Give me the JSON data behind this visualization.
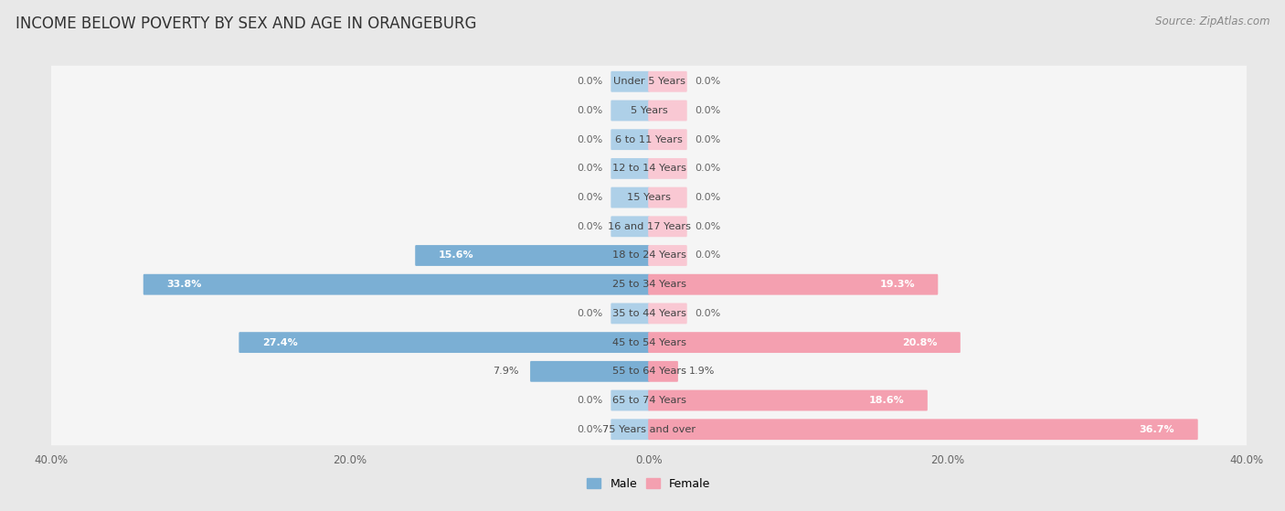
{
  "title": "INCOME BELOW POVERTY BY SEX AND AGE IN ORANGEBURG",
  "source": "Source: ZipAtlas.com",
  "categories": [
    "Under 5 Years",
    "5 Years",
    "6 to 11 Years",
    "12 to 14 Years",
    "15 Years",
    "16 and 17 Years",
    "18 to 24 Years",
    "25 to 34 Years",
    "35 to 44 Years",
    "45 to 54 Years",
    "55 to 64 Years",
    "65 to 74 Years",
    "75 Years and over"
  ],
  "male": [
    0.0,
    0.0,
    0.0,
    0.0,
    0.0,
    0.0,
    15.6,
    33.8,
    0.0,
    27.4,
    7.9,
    0.0,
    0.0
  ],
  "female": [
    0.0,
    0.0,
    0.0,
    0.0,
    0.0,
    0.0,
    0.0,
    19.3,
    0.0,
    20.8,
    1.9,
    18.6,
    36.7
  ],
  "male_color": "#7BAFD4",
  "female_color": "#F4A0B0",
  "male_color_zero": "#aed0e8",
  "female_color_zero": "#f9c8d3",
  "male_label": "Male",
  "female_label": "Female",
  "xlim": 40.0,
  "bg_color": "#e8e8e8",
  "bar_bg_color": "#f5f5f5",
  "title_fontsize": 12,
  "source_fontsize": 8.5,
  "label_fontsize": 8.0,
  "axis_label_fontsize": 8.5,
  "zero_stub": 2.5
}
